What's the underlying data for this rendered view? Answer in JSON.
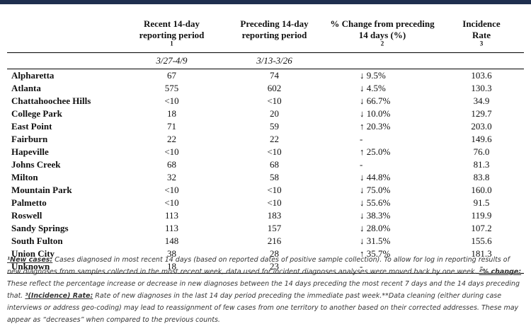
{
  "header": {
    "col_recent": "Recent 14-day",
    "col_recent_2": "reporting period",
    "col_recent_sup": "1",
    "col_prev": "Preceding 14-day",
    "col_prev_2": "reporting period",
    "col_change": "% Change from preceding",
    "col_change_2": "14 days (%)",
    "col_change_sup": "2",
    "col_inc": "Incidence",
    "col_inc_2": "Rate",
    "col_inc_sup": "3",
    "date_recent": "3/27-4/9",
    "date_prev": "3/13-3/26"
  },
  "rows": [
    {
      "name": "Alpharetta",
      "recent": "67",
      "prev": "74",
      "change": "↓ 9.5%",
      "rate": "103.6"
    },
    {
      "name": "Atlanta",
      "recent": "575",
      "prev": "602",
      "change": "↓ 4.5%",
      "rate": "130.3"
    },
    {
      "name": "Chattahoochee Hills",
      "recent": "<10",
      "prev": "<10",
      "change": "↓ 66.7%",
      "rate": "34.9"
    },
    {
      "name": "College Park",
      "recent": "18",
      "prev": "20",
      "change": "↓ 10.0%",
      "rate": "129.7"
    },
    {
      "name": "East Point",
      "recent": "71",
      "prev": "59",
      "change": "↑ 20.3%",
      "rate": "203.0"
    },
    {
      "name": "Fairburn",
      "recent": "22",
      "prev": "22",
      "change": "-",
      "rate": "149.6"
    },
    {
      "name": "Hapeville",
      "recent": "<10",
      "prev": "<10",
      "change": "↑ 25.0%",
      "rate": "76.0"
    },
    {
      "name": "Johns Creek",
      "recent": "68",
      "prev": "68",
      "change": "-",
      "rate": "81.3"
    },
    {
      "name": "Milton",
      "recent": "32",
      "prev": "58",
      "change": "↓ 44.8%",
      "rate": "83.8"
    },
    {
      "name": "Mountain Park",
      "recent": "<10",
      "prev": "<10",
      "change": "↓ 75.0%",
      "rate": "160.0"
    },
    {
      "name": "Palmetto",
      "recent": "<10",
      "prev": "<10",
      "change": "↓ 55.6%",
      "rate": "91.5"
    },
    {
      "name": "Roswell",
      "recent": "113",
      "prev": "183",
      "change": "↓ 38.3%",
      "rate": "119.9"
    },
    {
      "name": "Sandy Springs",
      "recent": "113",
      "prev": "157",
      "change": "↓ 28.0%",
      "rate": "107.2"
    },
    {
      "name": "South Fulton",
      "recent": "148",
      "prev": "216",
      "change": "↓ 31.5%",
      "rate": "155.6"
    },
    {
      "name": "Union City",
      "recent": "38",
      "prev": "28",
      "change": "↑ 35.7%",
      "rate": "181.3"
    },
    {
      "name": "Unknown",
      "recent": "18",
      "prev": "23",
      "change": "-",
      "rate": "-"
    }
  ],
  "footnote": {
    "t1": "¹New cases:",
    "d1": " Cases diagnosed in most recent 14 days (based on reported dates of positive sample collection). To allow for log in reporting results of new diagnoses from samples collected in the most recent week, data used for incident diagnoses analyses were moved back by one week. ",
    "t2": "²% change:",
    "d2": " These reflect the percentage increase or decrease in new diagnoses between the 14 days preceding the most recent 7 days and the 14 days preceding that. ",
    "t3": "³(Incidence) Rate:",
    "d3": " Rate of new diagnoses in the last 14 day period preceding the immediate past week.**Data cleaning (either during case interviews or address geo-coding) may lead to reassignment of few cases from one territory to another based on their corrected addresses. These may appear as “decreases” when compared to the previous counts."
  }
}
